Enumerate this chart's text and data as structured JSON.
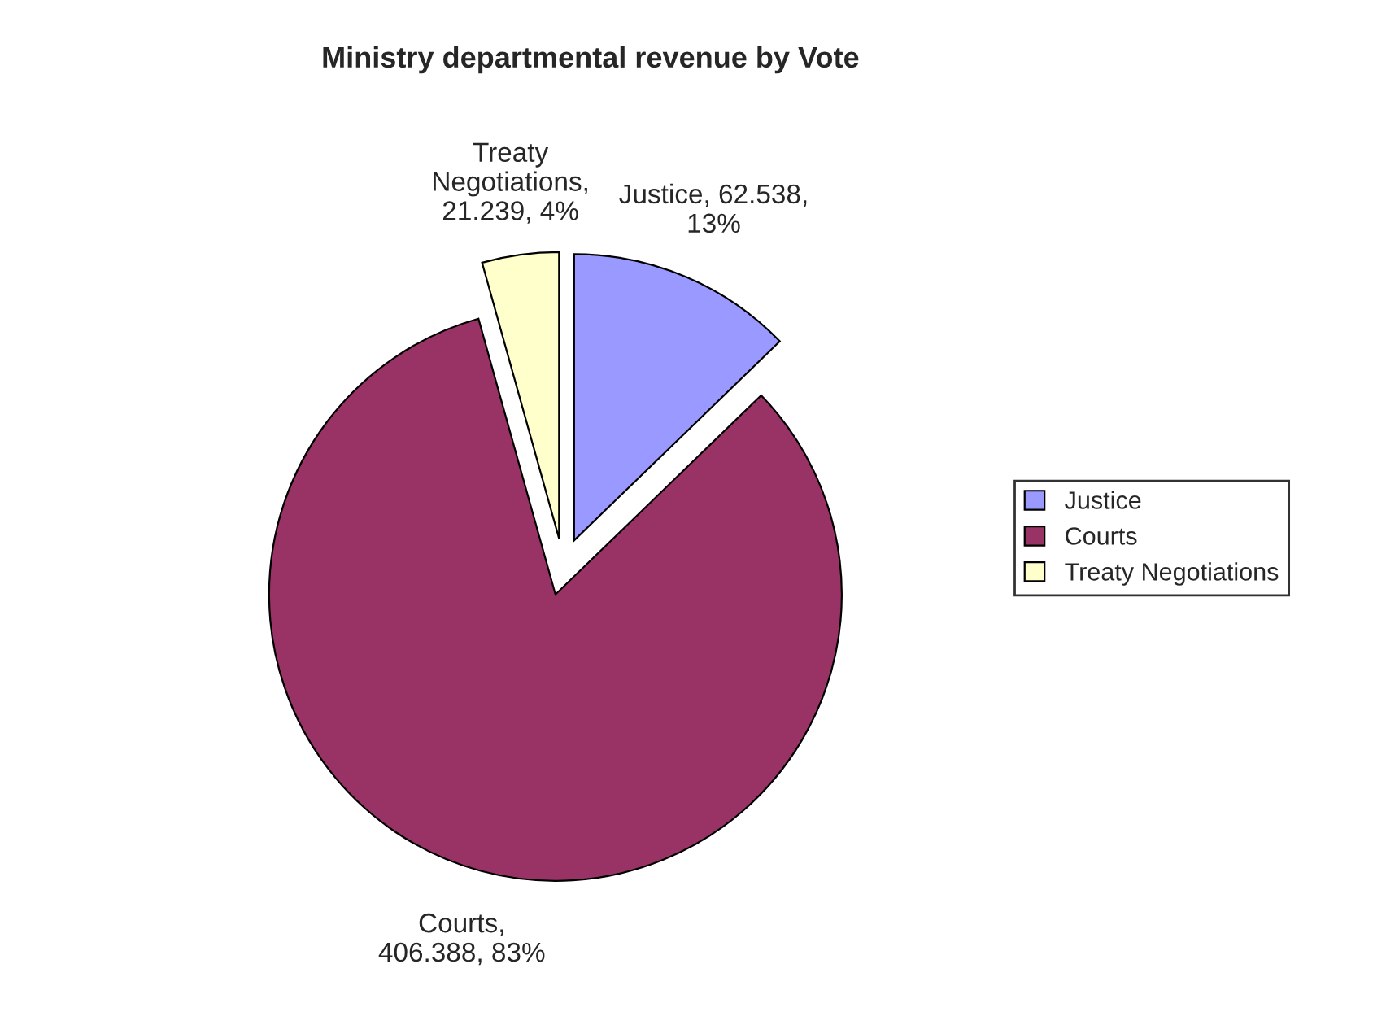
{
  "chart_data": {
    "type": "pie",
    "title": "Ministry departmental revenue by Vote",
    "categories": [
      "Justice",
      "Courts",
      "Treaty Negotiations"
    ],
    "values": [
      62.538,
      406.388,
      21.239
    ],
    "colors": [
      "#9999ff",
      "#993366",
      "#ffffcc"
    ],
    "value_labels": [
      "Justice, 62.538,\n13%",
      "Courts,\n406.388, 83%",
      "Treaty\nNegotiations,\n21.239, 4%"
    ],
    "legend": "right"
  }
}
